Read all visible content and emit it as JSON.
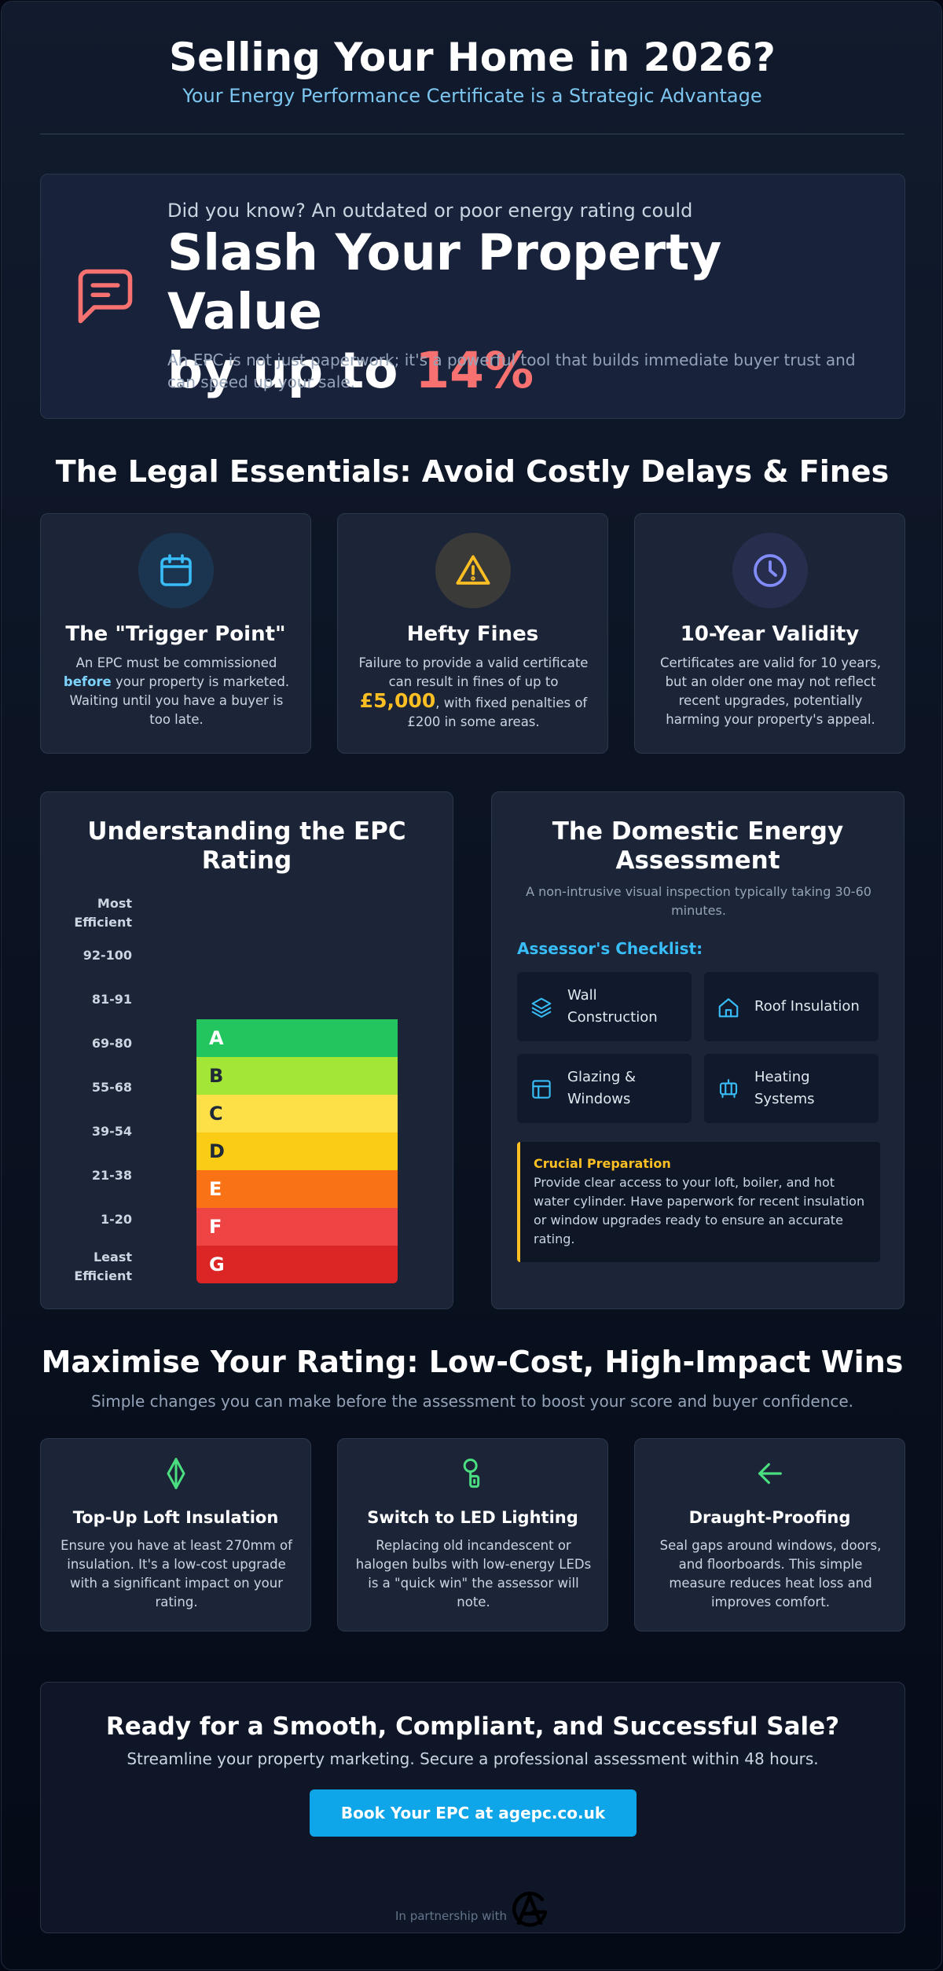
{
  "header": {
    "title": "Selling Your Home in 2026?",
    "subtitle": "Your Energy Performance Certificate is a Strategic Advantage"
  },
  "hero": {
    "icon": "message-icon",
    "lead": "Did you know? An outdated or poor energy rating could",
    "headline_line1": "Slash Your Property Value",
    "headline_line2_prefix": "by up to ",
    "headline_percent": "14%",
    "note": "An EPC is not just paperwork; it's a powerful tool that builds immediate buyer trust and can speed up your sale.",
    "accent_color": "#f87171"
  },
  "legal": {
    "title": "The Legal Essentials: Avoid Costly Delays & Fines",
    "cards": [
      {
        "icon": "calendar-icon",
        "title": "The \"Trigger Point\"",
        "desc_pre": "An EPC must be commissioned ",
        "desc_highlight": "before",
        "desc_post": " your property is marketed. Waiting until you have a buyer is too late."
      },
      {
        "icon": "warning-icon",
        "title": "Hefty Fines",
        "desc_pre": "Failure to provide a valid certificate can result in fines of up to ",
        "desc_highlight": "£5,000",
        "desc_post": ", with fixed penalties of £200 in some areas."
      },
      {
        "icon": "clock-icon",
        "title": "10-Year Validity",
        "desc": "Certificates are valid for 10 years, but an older one may not reflect recent upgrades, potentially harming your property's appeal."
      }
    ]
  },
  "epc": {
    "title": "Understanding the EPC Rating",
    "top_label": "Most Efficient",
    "bottom_label": "Least Efficient",
    "ranges": [
      "92-100",
      "81-91",
      "69-80",
      "55-68",
      "39-54",
      "21-38",
      "1-20"
    ],
    "bands": [
      {
        "letter": "A",
        "color": "#22c55e"
      },
      {
        "letter": "B",
        "color": "#a3e635"
      },
      {
        "letter": "C",
        "color": "#fde047"
      },
      {
        "letter": "D",
        "color": "#facc15"
      },
      {
        "letter": "E",
        "color": "#f97316"
      },
      {
        "letter": "F",
        "color": "#ef4444"
      },
      {
        "letter": "G",
        "color": "#dc2626"
      }
    ]
  },
  "assessment": {
    "title": "The Domestic Energy Assessment",
    "subtitle": "A non-intrusive visual inspection typically taking 30-60 minutes.",
    "checklist_title": "Assessor's Checklist:",
    "checklist": [
      {
        "icon": "layers-icon",
        "label": "Wall Construction"
      },
      {
        "icon": "house-icon",
        "label": "Roof Insulation"
      },
      {
        "icon": "window-icon",
        "label": "Glazing & Windows"
      },
      {
        "icon": "heater-icon",
        "label": "Heating Systems"
      }
    ],
    "prep_title": "Crucial Preparation",
    "prep_text": "Provide clear access to your loft, boiler, and hot water cylinder. Have paperwork for recent insulation or window upgrades ready to ensure an accurate rating."
  },
  "tips": {
    "title": "Maximise Your Rating: Low-Cost, High-Impact Wins",
    "subtitle": "Simple changes you can make before the assessment to boost your score and buyer confidence.",
    "items": [
      {
        "icon": "insulation-icon",
        "title": "Top-Up Loft Insulation",
        "desc": "Ensure you have at least 270mm of insulation. It's a low-cost upgrade with a significant impact on your rating."
      },
      {
        "icon": "bulb-icon",
        "title": "Switch to LED Lighting",
        "desc": "Replacing old incandescent or halogen bulbs with low-energy LEDs is a \"quick win\" the assessor will note."
      },
      {
        "icon": "arrow-left-icon",
        "title": "Draught-Proofing",
        "desc": "Seal gaps around windows, doors, and floorboards. This simple measure reduces heat loss and improves comfort."
      }
    ],
    "icon_color": "#4ade80"
  },
  "cta": {
    "title": "Ready for a Smooth, Compliant, and Successful Sale?",
    "subtitle": "Streamline your property marketing. Secure a professional assessment within 48 hours.",
    "button_label": "Book Your EPC at agepc.co.uk",
    "partner_text": "In partnership with",
    "button_color": "#0ea5e9"
  }
}
